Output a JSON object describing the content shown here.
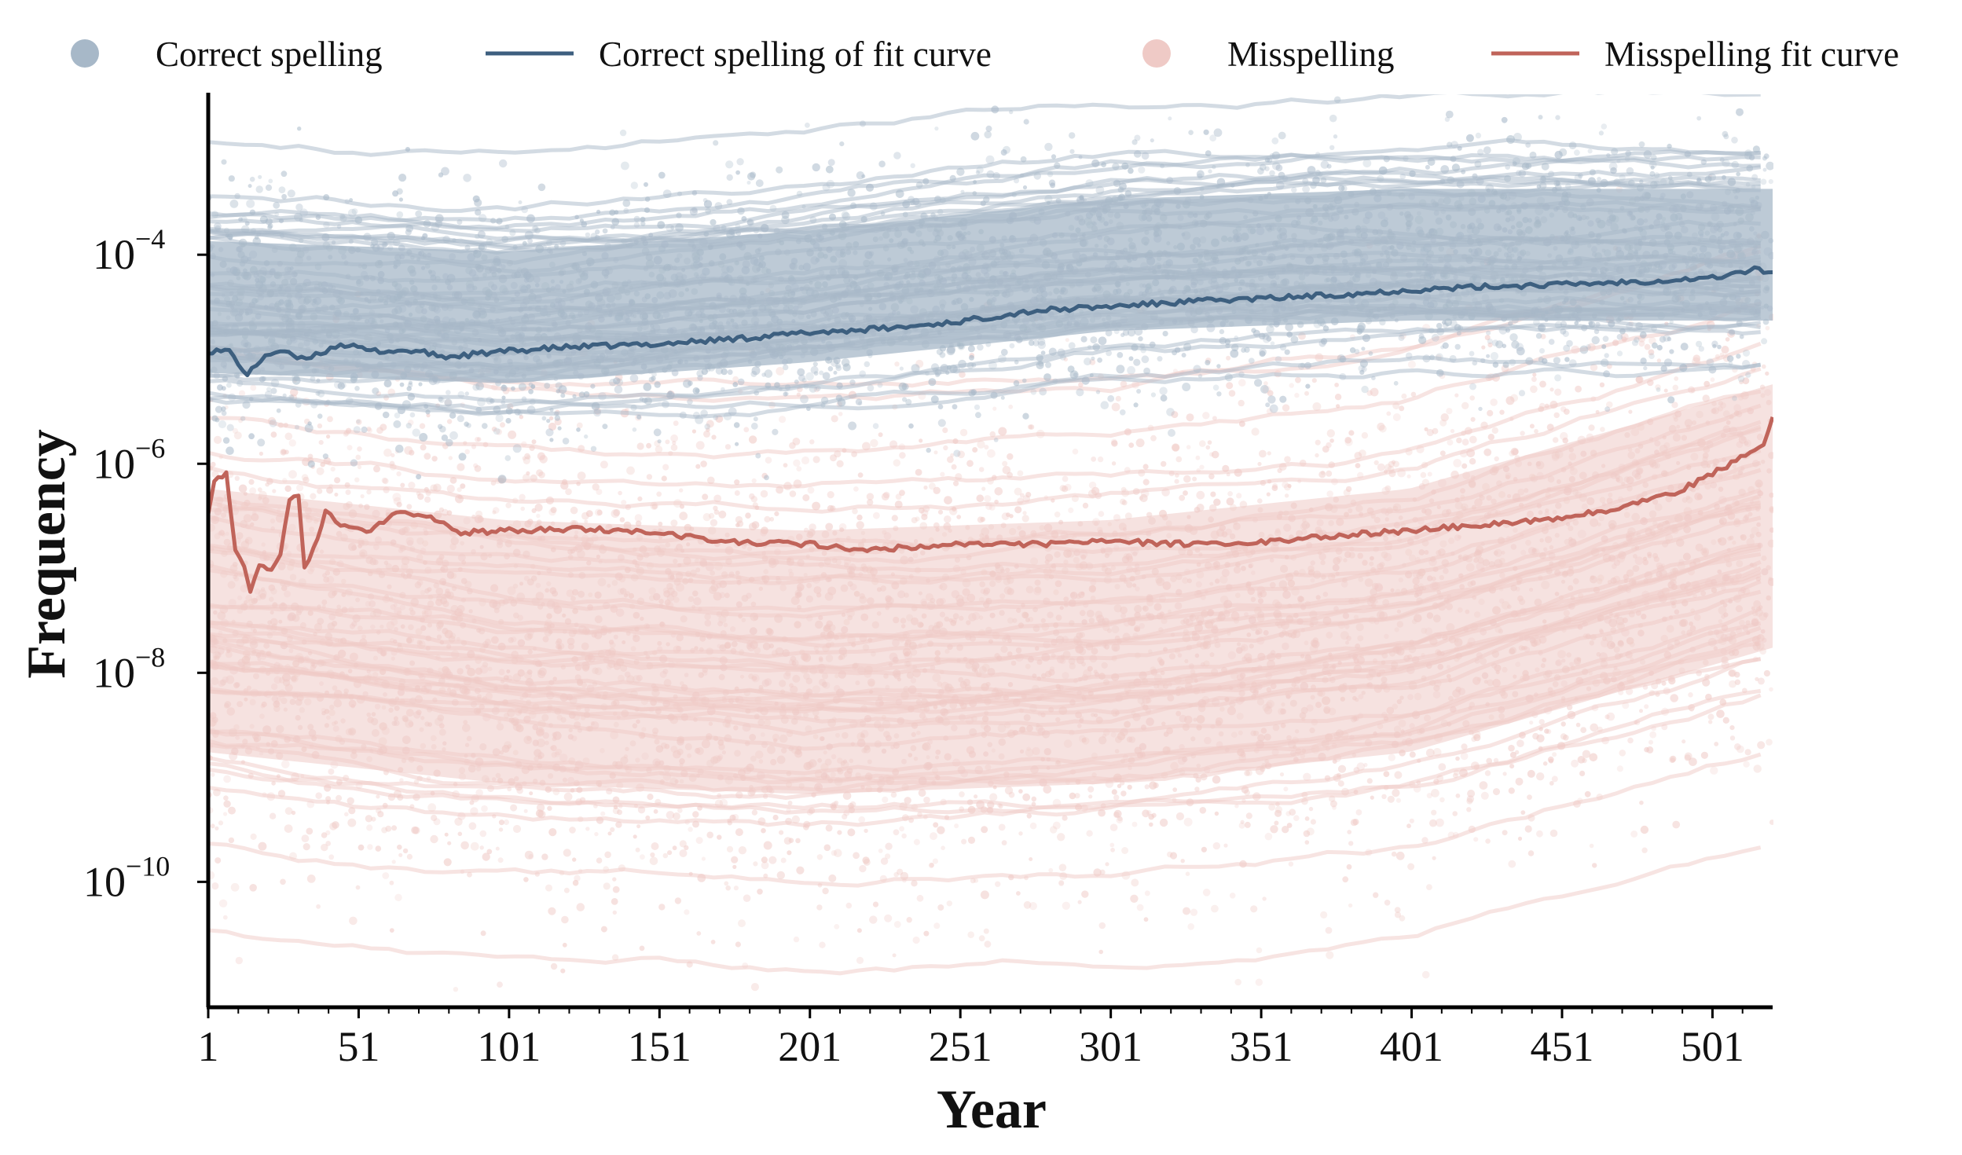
{
  "chart_data": {
    "type": "line",
    "xlabel": "Year",
    "ylabel": "Frequency",
    "x_ticks": [
      "1",
      "51",
      "101",
      "151",
      "201",
      "251",
      "301",
      "351",
      "401",
      "451",
      "501"
    ],
    "x_tick_values": [
      1,
      51,
      101,
      151,
      201,
      251,
      301,
      351,
      401,
      451,
      501
    ],
    "xlim": [
      1,
      521
    ],
    "y_scale": "log",
    "y_ticks": [
      {
        "base": "10",
        "exp": "−4",
        "value": 0.0001
      },
      {
        "base": "10",
        "exp": "−6",
        "value": 1e-06
      },
      {
        "base": "10",
        "exp": "−8",
        "value": 1e-08
      },
      {
        "base": "10",
        "exp": "−10",
        "value": 1e-10
      }
    ],
    "ylim_log10": [
      -11.2,
      -2.45
    ],
    "grid": false,
    "legend": {
      "position": "top",
      "entries": [
        {
          "label": "Correct spelling",
          "marker": "dot",
          "color": "#a7b8c8"
        },
        {
          "label": "Correct spelling of fit curve",
          "marker": "line",
          "color": "#3d5f7f"
        },
        {
          "label": "Misspelling",
          "marker": "dot",
          "color": "#efcac6"
        },
        {
          "label": "Misspelling fit curve",
          "marker": "line",
          "color": "#c0645a"
        }
      ]
    },
    "series": [
      {
        "name": "Correct spelling of fit curve",
        "color": "#3d5f7f",
        "points": [
          [
            1,
            1.2e-05
          ],
          [
            8,
            1.2e-05
          ],
          [
            14,
            7e-06
          ],
          [
            20,
            1.1e-05
          ],
          [
            25,
            1.2e-05
          ],
          [
            32,
            1e-05
          ],
          [
            40,
            1.2e-05
          ],
          [
            45,
            1.4e-05
          ],
          [
            55,
            1.2e-05
          ],
          [
            70,
            1.2e-05
          ],
          [
            80,
            1.05e-05
          ],
          [
            101,
            1.2e-05
          ],
          [
            120,
            1.3e-05
          ],
          [
            151,
            1.4e-05
          ],
          [
            180,
            1.6e-05
          ],
          [
            201,
            1.8e-05
          ],
          [
            230,
            2e-05
          ],
          [
            251,
            2.3e-05
          ],
          [
            275,
            2.9e-05
          ],
          [
            301,
            3.2e-05
          ],
          [
            330,
            3.6e-05
          ],
          [
            351,
            3.8e-05
          ],
          [
            380,
            4.2e-05
          ],
          [
            401,
            4.6e-05
          ],
          [
            430,
            5e-05
          ],
          [
            451,
            5.2e-05
          ],
          [
            480,
            5.6e-05
          ],
          [
            501,
            6e-05
          ],
          [
            515,
            7.2e-05
          ],
          [
            521,
            6.8e-05
          ]
        ]
      },
      {
        "name": "Misspelling fit curve",
        "color": "#c0645a",
        "points": [
          [
            1,
            3.5e-07
          ],
          [
            3,
            7e-07
          ],
          [
            7,
            8e-07
          ],
          [
            10,
            1.5e-07
          ],
          [
            13,
            1e-07
          ],
          [
            15,
            6e-08
          ],
          [
            18,
            1.1e-07
          ],
          [
            22,
            1e-07
          ],
          [
            25,
            1.3e-07
          ],
          [
            28,
            4.5e-07
          ],
          [
            31,
            5e-07
          ],
          [
            33,
            1e-07
          ],
          [
            36,
            1.5e-07
          ],
          [
            40,
            3.5e-07
          ],
          [
            45,
            2.6e-07
          ],
          [
            55,
            2.3e-07
          ],
          [
            65,
            3.5e-07
          ],
          [
            75,
            3e-07
          ],
          [
            85,
            2.2e-07
          ],
          [
            101,
            2.3e-07
          ],
          [
            125,
            2.4e-07
          ],
          [
            151,
            2.2e-07
          ],
          [
            170,
            1.8e-07
          ],
          [
            201,
            1.7e-07
          ],
          [
            220,
            1.5e-07
          ],
          [
            251,
            1.7e-07
          ],
          [
            275,
            1.7e-07
          ],
          [
            301,
            1.8e-07
          ],
          [
            330,
            1.7e-07
          ],
          [
            351,
            1.8e-07
          ],
          [
            380,
            2.1e-07
          ],
          [
            401,
            2.3e-07
          ],
          [
            430,
            2.7e-07
          ],
          [
            451,
            3e-07
          ],
          [
            470,
            3.8e-07
          ],
          [
            490,
            5.5e-07
          ],
          [
            501,
            8e-07
          ],
          [
            512,
            1.2e-06
          ],
          [
            518,
            1.5e-06
          ],
          [
            521,
            2.8e-06
          ]
        ]
      }
    ],
    "scatter_bands": [
      {
        "name": "Correct spelling",
        "color": "#a7b8c8",
        "center_log10": [
          [
            1,
            -4.5
          ],
          [
            100,
            -4.6
          ],
          [
            200,
            -4.4
          ],
          [
            300,
            -4.1
          ],
          [
            400,
            -4.0
          ],
          [
            521,
            -4.0
          ]
        ],
        "spread_log10": 0.7
      },
      {
        "name": "Misspelling",
        "color": "#efcac6",
        "center_log10": [
          [
            1,
            -7.5
          ],
          [
            100,
            -7.8
          ],
          [
            200,
            -7.9
          ],
          [
            300,
            -7.8
          ],
          [
            400,
            -7.5
          ],
          [
            521,
            -6.5
          ]
        ],
        "spread_log10": 1.4
      }
    ]
  }
}
